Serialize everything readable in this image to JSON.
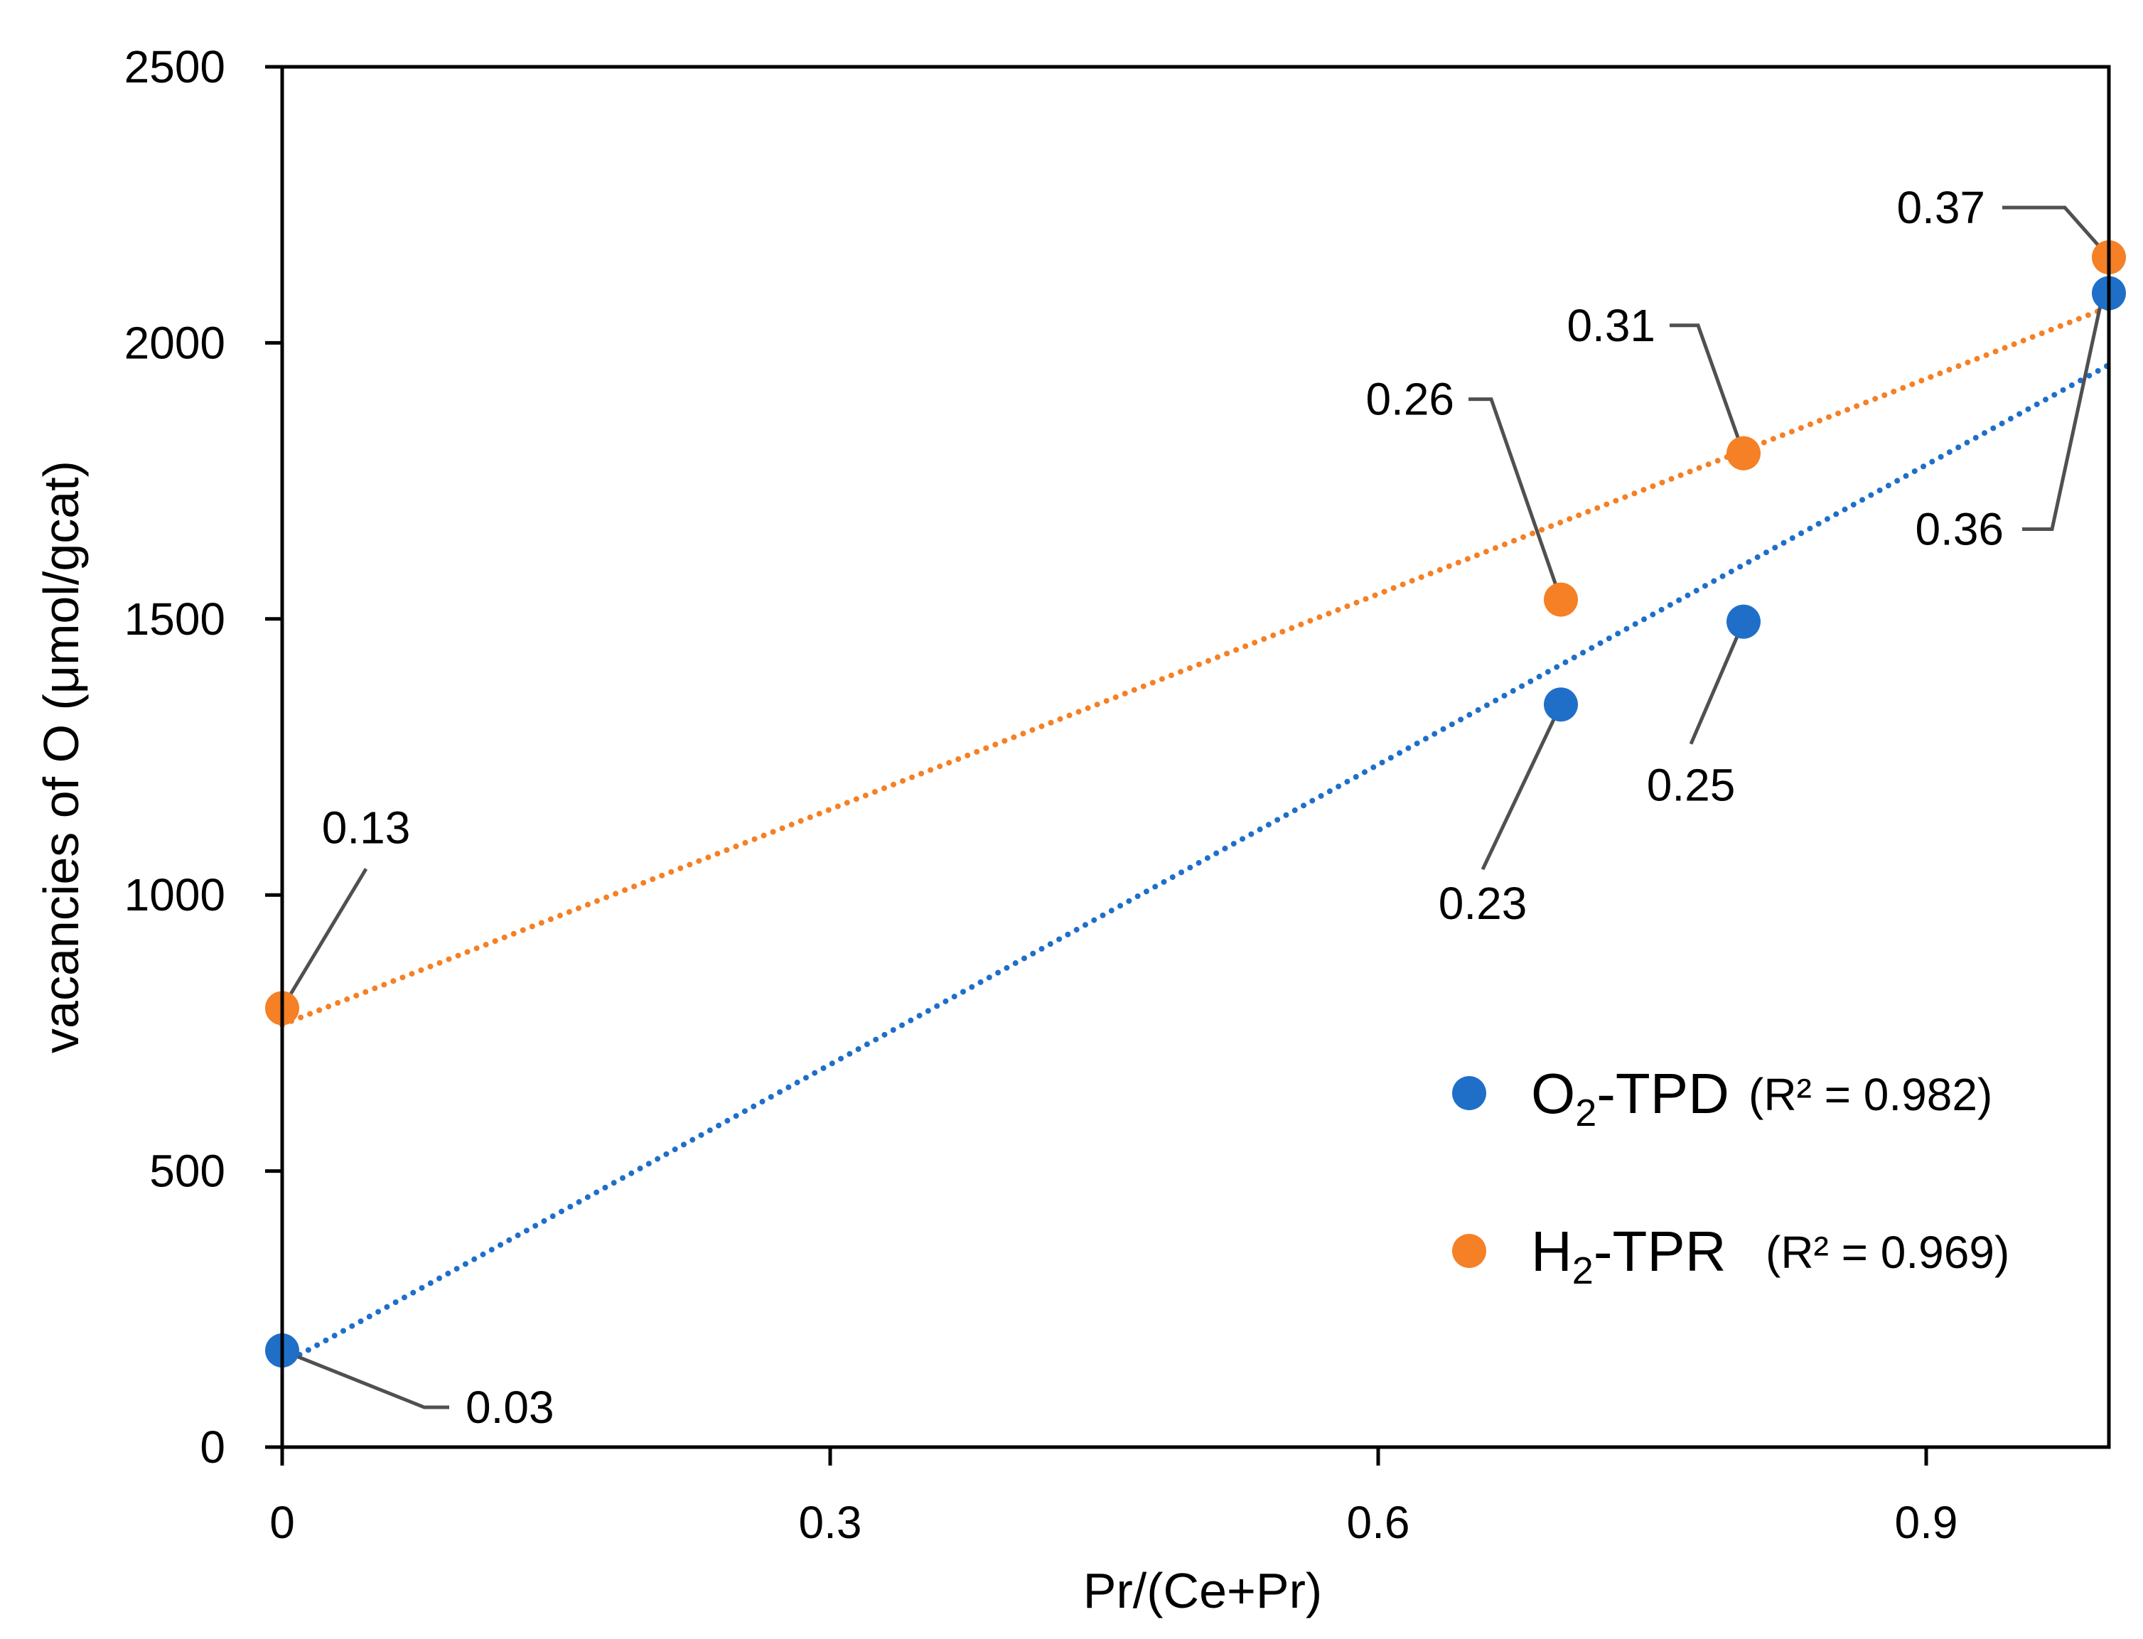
{
  "chart_data": {
    "type": "scatter",
    "xlabel": "Pr/(Ce+Pr)",
    "ylabel": "vacancies of O (μmol/gcat)",
    "xlim": [
      0,
      1.0
    ],
    "ylim": [
      0,
      2500
    ],
    "xticks": [
      0,
      0.3,
      0.6,
      0.9
    ],
    "xtick_labels": [
      "0",
      "0.3",
      "0.6",
      "0.9"
    ],
    "yticks": [
      0,
      500,
      1000,
      1500,
      2000,
      2500
    ],
    "ytick_labels": [
      "0",
      "500",
      "1000",
      "1500",
      "2000",
      "2500"
    ],
    "grid": false,
    "legend_position": "bottom-right",
    "series": [
      {
        "name": "O2-TPD",
        "legend_main": "O",
        "legend_sub": "2",
        "legend_rest": "-TPD",
        "legend_r2": "(R² = 0.982)",
        "color": "#1F6FC9",
        "points": [
          {
            "x": 0,
            "y": 175,
            "label": "0.03"
          },
          {
            "x": 0.7,
            "y": 1345,
            "label": "0.23"
          },
          {
            "x": 0.8,
            "y": 1495,
            "label": "0.25"
          },
          {
            "x": 1.0,
            "y": 2090,
            "label": "0.36"
          }
        ],
        "trendline": {
          "style": "dotted",
          "from": [
            0,
            150
          ],
          "to": [
            1.0,
            1960
          ]
        }
      },
      {
        "name": "H2-TPR",
        "legend_main": "H",
        "legend_sub": "2",
        "legend_rest": "-TPR",
        "legend_r2": "(R² = 0.969)",
        "color": "#F58025",
        "points": [
          {
            "x": 0,
            "y": 795,
            "label": "0.13"
          },
          {
            "x": 0.7,
            "y": 1535,
            "label": "0.26"
          },
          {
            "x": 0.8,
            "y": 1800,
            "label": "0.31"
          },
          {
            "x": 1.0,
            "y": 2155,
            "label": "0.37"
          }
        ],
        "trendline": {
          "style": "dotted",
          "from": [
            0,
            765
          ],
          "to": [
            1.0,
            2065
          ]
        }
      }
    ]
  }
}
